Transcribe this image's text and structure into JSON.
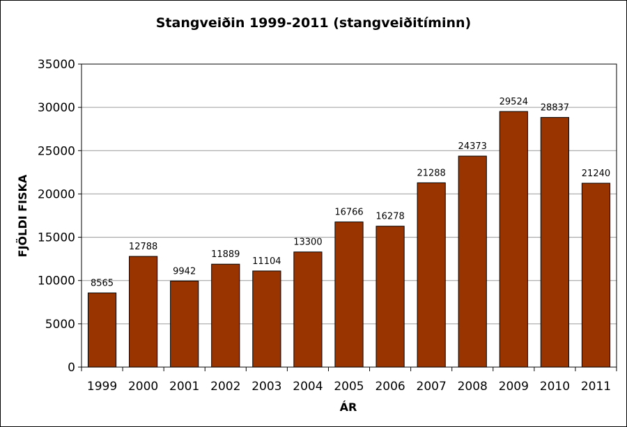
{
  "chart_data": {
    "type": "bar",
    "title": "Stangveiðin 1999-2011 (stangveiðitíminn)",
    "xlabel": "ÁR",
    "ylabel": "FJÖLDI FISKA",
    "categories": [
      "1999",
      "2000",
      "2001",
      "2002",
      "2003",
      "2004",
      "2005",
      "2006",
      "2007",
      "2008",
      "2009",
      "2010",
      "2011"
    ],
    "values": [
      8565,
      12788,
      9942,
      11889,
      11104,
      13300,
      16766,
      16278,
      21288,
      24373,
      29524,
      28837,
      21240
    ],
    "data_labels": [
      "8565",
      "12788",
      "9942",
      "11889",
      "11104",
      "13300",
      "16766",
      "16278",
      "21288",
      "24373",
      "29524",
      "28837",
      "21240"
    ],
    "ylim": [
      0,
      35000
    ],
    "yticks": [
      "0",
      "5000",
      "10000",
      "15000",
      "20000",
      "25000",
      "30000",
      "35000"
    ],
    "grid": true,
    "legend": "none",
    "colors": {
      "bar": "#993300",
      "bar_edge": "#000000",
      "grid": "#9a9a9a"
    }
  }
}
